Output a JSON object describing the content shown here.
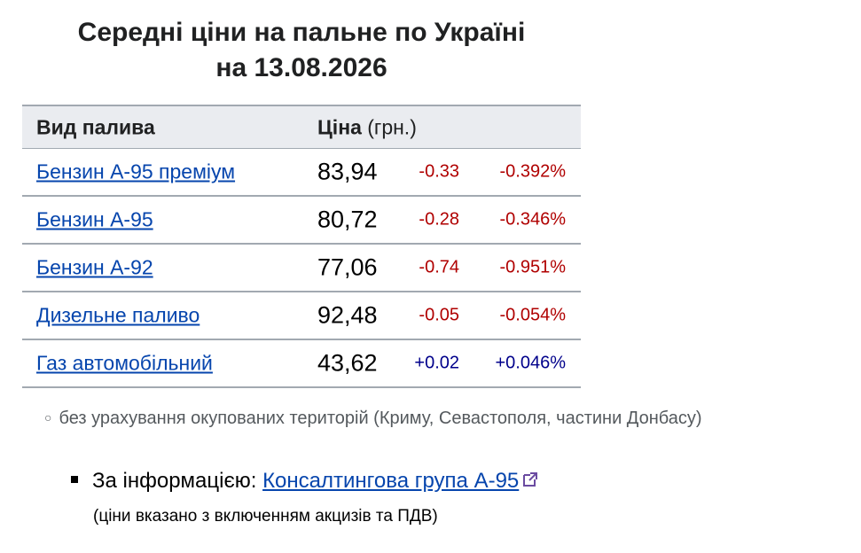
{
  "title": {
    "line1": "Середні ціни на пальне по Україні",
    "line2": "на 13.08.2026"
  },
  "table": {
    "header": {
      "fuel": "Вид палива",
      "price": "Ціна",
      "unit": "(грн.)"
    },
    "rows": [
      [
        "Бензин А-95 преміум",
        "83,94",
        "-0.33",
        "-0.392%"
      ],
      [
        "Бензин А-95",
        "80,72",
        "-0.28",
        "-0.346%"
      ],
      [
        "Бензин А-92",
        "77,06",
        "-0.74",
        "-0.951%"
      ],
      [
        "Дизельне паливо",
        "92,48",
        "-0.05",
        "-0.054%"
      ],
      [
        "Газ автомобільний",
        "43,62",
        "+0.02",
        "+0.046%"
      ]
    ]
  },
  "note": "без урахування окупованих територій (Криму, Севастополя, частини Донбасу)",
  "source": {
    "label": "За інформацією:",
    "link": "Консалтингова група А-95",
    "remark": "(ціни вказано з включенням акцизів та ПДВ)"
  }
}
